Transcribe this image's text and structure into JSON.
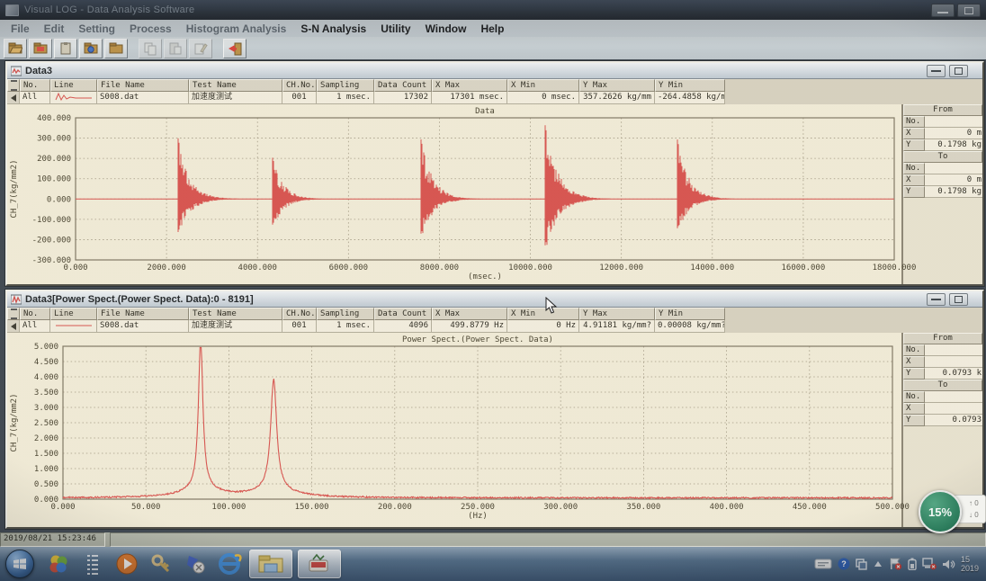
{
  "app": {
    "title": "Visual LOG - Data Analysis Software"
  },
  "menu": {
    "items": [
      {
        "label": "File",
        "muted": true
      },
      {
        "label": "Edit",
        "muted": true
      },
      {
        "label": "Setting",
        "muted": true
      },
      {
        "label": "Process",
        "muted": true
      },
      {
        "label": "Histogram Analysis",
        "muted": true
      },
      {
        "label": "S-N Analysis",
        "muted": false
      },
      {
        "label": "Utility",
        "muted": false
      },
      {
        "label": "Window",
        "muted": false
      },
      {
        "label": "Help",
        "muted": false
      }
    ]
  },
  "toolbar": {
    "buttons": [
      {
        "icon": "open-folder-icon",
        "disabled": false
      },
      {
        "icon": "save-file-icon",
        "disabled": false
      },
      {
        "icon": "clipboard-icon",
        "disabled": false
      },
      {
        "icon": "import-data-icon",
        "disabled": false
      },
      {
        "icon": "folder-icon",
        "disabled": false
      },
      {
        "icon": "copy-icon",
        "disabled": true
      },
      {
        "icon": "paste-icon",
        "disabled": true
      },
      {
        "icon": "edit-icon",
        "disabled": true
      },
      {
        "icon": "exit-icon",
        "disabled": false
      }
    ]
  },
  "table": {
    "headers": [
      "No.",
      "Line",
      "File Name",
      "Test Name",
      "CH.No.",
      "Sampling",
      "Data Count",
      "X Max",
      "X Min",
      "Y Max",
      "Y Min"
    ]
  },
  "side_labels": {
    "from": "From",
    "to": "To",
    "rows": [
      "No.",
      "X",
      "Y"
    ]
  },
  "windows": [
    {
      "title": "Data3",
      "line_icon": "damped-waveform",
      "row": [
        "All",
        "",
        "S008.dat",
        "加速度测试",
        "001",
        "1 msec.",
        "17302",
        "17301 msec.",
        "0 msec.",
        "357.2626 kg/mm",
        "-264.4858 kg/m"
      ],
      "side": {
        "from": {
          "no": "",
          "x": "0 m",
          "y": "0.1798 kg"
        },
        "to": {
          "no": "",
          "x": "0 m",
          "y": "0.1798 kg"
        }
      }
    },
    {
      "title": "Data3[Power Spect.(Power Spect. Data):0 - 8191]",
      "line_icon": "flat-line",
      "row": [
        "All",
        "",
        "S008.dat",
        "加速度测试",
        "001",
        "1 msec.",
        "4096",
        "499.8779 Hz",
        "0 Hz",
        "4.91181 kg/mm?",
        "0.00008 kg/mm?"
      ],
      "side": {
        "from": {
          "no": "",
          "x": "",
          "y": "0.0793 k"
        },
        "to": {
          "no": "",
          "x": "",
          "y": "0.0793"
        }
      }
    }
  ],
  "chart_data": [
    {
      "type": "line",
      "title": "Data",
      "xlabel": "(msec.)",
      "ylabel": "CH_7(kg/mm2)",
      "xlim": [
        0,
        18000
      ],
      "ylim": [
        -300,
        400
      ],
      "grid": "dashed",
      "color": "#d8504d",
      "xticks": [
        [
          0,
          "0.000"
        ],
        [
          2000,
          "2000.000"
        ],
        [
          4000,
          "4000.000"
        ],
        [
          6000,
          "6000.000"
        ],
        [
          8000,
          "8000.000"
        ],
        [
          10000,
          "10000.000"
        ],
        [
          12000,
          "12000.000"
        ],
        [
          14000,
          "14000.000"
        ],
        [
          16000,
          "16000.000"
        ],
        [
          18000,
          "18000.000"
        ]
      ],
      "yticks": [
        [
          400,
          "400.000"
        ],
        [
          300,
          "300.000"
        ],
        [
          200,
          "200.000"
        ],
        [
          100,
          "100.000"
        ],
        [
          0,
          "0.000"
        ],
        [
          -100,
          "-100.000"
        ],
        [
          -200,
          "-200.000"
        ],
        [
          -300,
          "-300.000"
        ]
      ],
      "series_note": "five damped oscillation bursts on zero baseline",
      "bursts": [
        {
          "t0": 2250,
          "peak_pos": 305,
          "peak_neg": -195,
          "decay_ms": 260
        },
        {
          "t0": 4330,
          "peak_pos": 205,
          "peak_neg": -150,
          "decay_ms": 240
        },
        {
          "t0": 7590,
          "peak_pos": 300,
          "peak_neg": -205,
          "decay_ms": 260
        },
        {
          "t0": 10330,
          "peak_pos": 357,
          "peak_neg": -264,
          "decay_ms": 280
        },
        {
          "t0": 13240,
          "peak_pos": 285,
          "peak_neg": -165,
          "decay_ms": 250
        }
      ]
    },
    {
      "type": "line",
      "title": "Power Spect.(Power Spect. Data)",
      "xlabel": "(Hz)",
      "ylabel": "CH_7(kg/mm2)",
      "xlim": [
        0,
        500
      ],
      "ylim": [
        0,
        5
      ],
      "grid": "dashed",
      "color": "#d8504d",
      "xticks": [
        [
          0,
          "0.000"
        ],
        [
          50,
          "50.000"
        ],
        [
          100,
          "100.000"
        ],
        [
          150,
          "150.000"
        ],
        [
          200,
          "200.000"
        ],
        [
          250,
          "250.000"
        ],
        [
          300,
          "300.000"
        ],
        [
          350,
          "350.000"
        ],
        [
          400,
          "400.000"
        ],
        [
          450,
          "450.000"
        ],
        [
          500,
          "500.000"
        ]
      ],
      "yticks": [
        [
          5,
          "5.000"
        ],
        [
          4.5,
          "4.500"
        ],
        [
          4,
          "4.000"
        ],
        [
          3.5,
          "3.500"
        ],
        [
          3,
          "3.000"
        ],
        [
          2.5,
          "2.500"
        ],
        [
          2,
          "2.000"
        ],
        [
          1.5,
          "1.500"
        ],
        [
          1,
          "1.000"
        ],
        [
          0.5,
          "0.500"
        ],
        [
          0,
          "0.000"
        ]
      ],
      "noise_floor": 0.05,
      "peaks": [
        {
          "freq": 83,
          "amp": 4.91,
          "width": 1.6
        },
        {
          "freq": 127,
          "amp": 3.65,
          "width": 2.2
        }
      ]
    }
  ],
  "status_bar": {
    "datetime": "2019/08/21 15:23:46"
  },
  "taskbar": {
    "apps": [
      {
        "name": "four-color-app",
        "active": false
      },
      {
        "name": "task-list",
        "active": false
      },
      {
        "name": "media-player",
        "active": false
      },
      {
        "name": "key-tool",
        "active": false
      },
      {
        "name": "clip-tool",
        "active": false
      },
      {
        "name": "internet-explorer",
        "active": false
      },
      {
        "name": "file-explorer",
        "active": true
      },
      {
        "name": "analysis-app",
        "active": true
      }
    ],
    "tray": [
      {
        "name": "ime-pill"
      },
      {
        "name": "help",
        "glyph": "?"
      },
      {
        "name": "window-switch"
      },
      {
        "name": "show-hidden"
      },
      {
        "name": "flag-alert"
      },
      {
        "name": "battery"
      },
      {
        "name": "network-alert"
      },
      {
        "name": "volume"
      }
    ],
    "clock": {
      "time": "15",
      "date": "2019"
    }
  },
  "overlay": {
    "percent": "15%",
    "up": "0",
    "down": "0"
  }
}
